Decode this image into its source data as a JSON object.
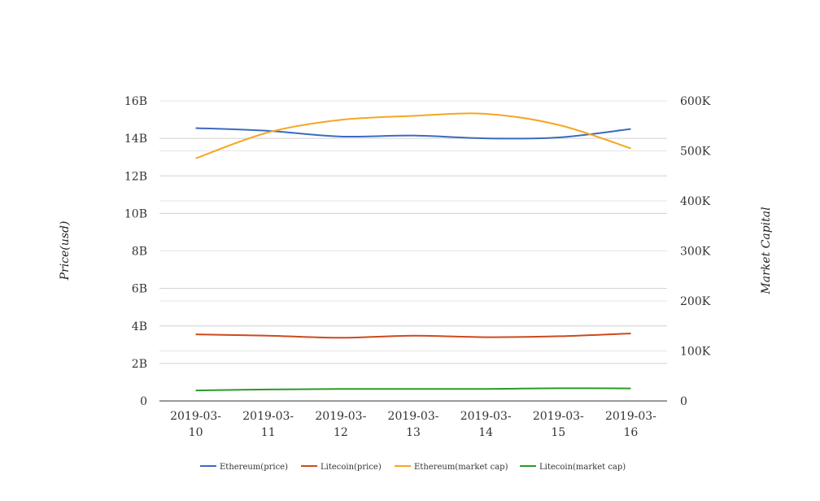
{
  "chart_data": {
    "type": "line",
    "categories": [
      "2019-03-10",
      "2019-03-11",
      "2019-03-12",
      "2019-03-13",
      "2019-03-14",
      "2019-03-15",
      "2019-03-16"
    ],
    "category_labels": [
      [
        "2019-03-",
        "10"
      ],
      [
        "2019-03-",
        "11"
      ],
      [
        "2019-03-",
        "12"
      ],
      [
        "2019-03-",
        "13"
      ],
      [
        "2019-03-",
        "14"
      ],
      [
        "2019-03-",
        "15"
      ],
      [
        "2019-03-",
        "16"
      ]
    ],
    "left_axis": {
      "title": "Price(usd)",
      "range": [
        0,
        16000000000
      ],
      "ticks": [
        0,
        2000000000,
        4000000000,
        6000000000,
        8000000000,
        10000000000,
        12000000000,
        14000000000,
        16000000000
      ],
      "tick_labels": [
        "0",
        "2B",
        "4B",
        "6B",
        "8B",
        "10B",
        "12B",
        "14B",
        "16B"
      ]
    },
    "right_axis": {
      "title": "Market Capital",
      "range": [
        0,
        600000
      ],
      "ticks": [
        0,
        100000,
        200000,
        300000,
        400000,
        500000,
        600000
      ],
      "tick_labels": [
        "0",
        "100K",
        "200K",
        "300K",
        "400K",
        "500K",
        "600K"
      ]
    },
    "series": [
      {
        "name": "Ethereum(price)",
        "axis": "left",
        "color": "#3b6bbf",
        "values": [
          14550000000,
          14400000000,
          14100000000,
          14150000000,
          14000000000,
          14050000000,
          14500000000
        ]
      },
      {
        "name": "Litecoin(price)",
        "axis": "left",
        "color": "#cc4a1e",
        "values": [
          3550000000,
          3480000000,
          3370000000,
          3480000000,
          3400000000,
          3450000000,
          3600000000
        ]
      },
      {
        "name": "Ethereum(market cap)",
        "axis": "right",
        "color": "#f5a623",
        "values": [
          485000,
          537000,
          562000,
          570000,
          574000,
          552000,
          505000
        ]
      },
      {
        "name": "Litecoin(market cap)",
        "axis": "right",
        "color": "#2a9a2a",
        "values": [
          21000,
          23000,
          24000,
          24000,
          24000,
          25500,
          25000
        ]
      }
    ],
    "grid": true,
    "legend_position": "bottom"
  }
}
